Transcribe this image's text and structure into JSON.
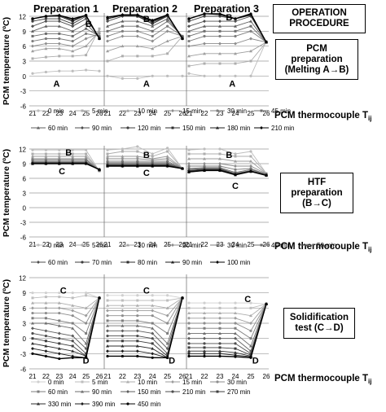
{
  "column_titles": [
    "Preparation 1",
    "Preparation 2",
    "Preparation 3"
  ],
  "right_boxes": {
    "operation": [
      "OPERATION",
      "PROCEDURE"
    ],
    "pcm_prep": [
      "PCM",
      "preparation",
      "(Melting A→B)"
    ],
    "htf_prep": [
      "HTF",
      "preparation",
      "(B→C)"
    ],
    "solid": [
      "Solidification",
      "test (C→D)"
    ]
  },
  "y_axis_label": "PCM temperature (ºC)",
  "x_axis_label": "PCM thermocouple T",
  "x_axis_subscript": "ij",
  "chart_data": [
    {
      "type": "line",
      "title": "",
      "x": [
        21,
        22,
        23,
        24,
        25,
        26
      ],
      "ylim": [
        -6,
        12
      ],
      "yticks": [
        -6,
        -3,
        0,
        3,
        6,
        9,
        12
      ],
      "annotations": [
        {
          "text": "A",
          "panel": 1,
          "x": 22.8,
          "y": -1.5
        },
        {
          "text": "B",
          "panel": 1,
          "x": 25.2,
          "y": 10.5
        },
        {
          "text": "A",
          "panel": 2,
          "x": 23.6,
          "y": -1.5
        },
        {
          "text": "B",
          "panel": 2,
          "x": 23.6,
          "y": 11.5
        },
        {
          "text": "A",
          "panel": 3,
          "x": 23.8,
          "y": -1.5
        },
        {
          "text": "B",
          "panel": 3,
          "x": 23.6,
          "y": 11.8
        }
      ],
      "legend": [
        [
          "0 min",
          "5 min",
          "10 min",
          "15 min",
          "30 min",
          "45 min"
        ],
        [
          "60 min",
          "90 min",
          "120 min",
          "150 min",
          "180 min",
          "210 min"
        ]
      ],
      "series_panel1": [
        [
          0.5,
          0.8,
          1,
          1,
          1.2,
          1
        ],
        [
          3.5,
          3.8,
          4,
          4,
          4.2,
          9.5
        ],
        [
          5,
          5.5,
          5.5,
          5,
          6,
          9
        ],
        [
          6,
          6.5,
          6.5,
          6,
          7.5,
          8.5
        ],
        [
          7,
          7.5,
          7.5,
          7,
          8.5,
          8
        ],
        [
          8,
          8.5,
          8.5,
          8,
          9.5,
          8
        ],
        [
          9,
          10,
          10,
          9,
          10.5,
          7.8
        ],
        [
          10,
          11,
          11,
          10,
          11.5,
          7.8
        ],
        [
          11,
          11.5,
          11.5,
          10.5,
          12,
          7.5
        ],
        [
          11.5,
          12,
          12,
          11,
          12.2,
          7.5
        ],
        [
          11.5,
          12,
          12.2,
          11.2,
          12.2,
          7.5
        ],
        [
          11.5,
          12,
          12.2,
          11.5,
          12.2,
          7.5
        ]
      ],
      "series_panel2": [
        [
          0,
          -0.5,
          -0.5,
          0,
          0,
          0
        ],
        [
          3,
          4,
          4,
          4,
          4.5,
          8
        ],
        [
          5,
          6,
          6,
          5.5,
          7,
          8
        ],
        [
          7,
          8,
          8,
          7,
          9,
          8
        ],
        [
          8,
          9,
          9,
          8,
          10,
          8
        ],
        [
          9,
          10,
          10,
          9,
          11,
          8
        ],
        [
          10,
          11,
          11,
          10,
          11.5,
          7.8
        ],
        [
          11,
          12,
          12,
          10.5,
          12,
          7.8
        ],
        [
          11.5,
          12.2,
          12,
          10.5,
          12.2,
          7.5
        ],
        [
          11.5,
          12.2,
          12,
          10.8,
          12.2,
          7.5
        ],
        [
          11.5,
          12.3,
          12.2,
          11,
          12.3,
          7.5
        ],
        [
          11.8,
          12.3,
          12.3,
          11.2,
          12.3,
          7.5
        ]
      ],
      "series_panel3": [
        [
          0.5,
          0,
          0,
          0,
          0,
          7
        ],
        [
          2,
          2.5,
          2.5,
          2.5,
          3,
          6.8
        ],
        [
          4,
          4.5,
          4.5,
          4.5,
          5,
          6.8
        ],
        [
          6,
          6.5,
          6.5,
          6.5,
          7.5,
          6.8
        ],
        [
          7,
          8,
          8,
          8,
          9,
          6.8
        ],
        [
          8,
          9,
          9,
          9,
          10,
          6.8
        ],
        [
          9,
          10,
          10,
          10,
          11,
          6.8
        ],
        [
          10,
          11,
          11,
          11,
          12,
          6.8
        ],
        [
          11,
          12,
          12,
          11.5,
          12.2,
          6.8
        ],
        [
          11.5,
          12.5,
          12.3,
          11.5,
          12.3,
          6.8
        ],
        [
          11.5,
          12.5,
          12.5,
          11.5,
          12.5,
          6.8
        ],
        [
          11.5,
          12.5,
          12.5,
          11.5,
          12.5,
          6.8
        ]
      ]
    },
    {
      "type": "line",
      "title": "",
      "x": [
        21,
        22,
        23,
        24,
        25,
        26
      ],
      "ylim": [
        -6,
        12
      ],
      "yticks": [
        -6,
        -3,
        0,
        3,
        6,
        9,
        12
      ],
      "annotations": [
        {
          "text": "B",
          "panel": 1,
          "x": 23.7,
          "y": 11.3
        },
        {
          "text": "C",
          "panel": 1,
          "x": 23.2,
          "y": 7.5
        },
        {
          "text": "B",
          "panel": 2,
          "x": 23.6,
          "y": 10.8
        },
        {
          "text": "C",
          "panel": 2,
          "x": 23.6,
          "y": 7.2
        },
        {
          "text": "B",
          "panel": 3,
          "x": 23.6,
          "y": 10.8
        },
        {
          "text": "C",
          "panel": 3,
          "x": 24,
          "y": 4.5
        }
      ],
      "legend": [
        [
          "0 min",
          "5 min",
          "10 min",
          "20 min",
          "30 min",
          "40 min",
          "50 min"
        ],
        [
          "60 min",
          "70 min",
          "80 min",
          "90 min",
          "100 min"
        ]
      ],
      "series_panel1": [
        [
          11.8,
          11.8,
          11.8,
          11.8,
          11.8,
          7.5
        ],
        [
          11,
          11,
          11,
          11,
          11,
          7.5
        ],
        [
          10.5,
          10.5,
          10.5,
          10.5,
          10.5,
          7.6
        ],
        [
          10,
          10,
          10,
          10,
          10,
          7.6
        ],
        [
          9.8,
          9.8,
          9.8,
          9.8,
          9.8,
          7.6
        ],
        [
          9.5,
          9.5,
          9.5,
          9.5,
          9.5,
          7.7
        ],
        [
          9.3,
          9.3,
          9.3,
          9.3,
          9.3,
          7.7
        ],
        [
          9.2,
          9.2,
          9.2,
          9.2,
          9.2,
          7.7
        ],
        [
          9.1,
          9.1,
          9.1,
          9.1,
          9.1,
          7.8
        ],
        [
          9,
          9,
          9,
          9,
          9,
          7.8
        ],
        [
          9,
          9,
          9,
          9,
          9,
          7.8
        ],
        [
          9,
          9,
          9,
          9,
          9,
          7.8
        ]
      ],
      "series_panel2": [
        [
          11.8,
          12,
          12.5,
          11,
          12.2,
          8
        ],
        [
          11,
          11.5,
          11.5,
          10.5,
          11.5,
          8
        ],
        [
          10.5,
          10.5,
          10.5,
          10,
          10.5,
          8
        ],
        [
          10,
          10,
          10,
          9.8,
          10,
          8
        ],
        [
          9.5,
          9.5,
          9.5,
          9.5,
          9.5,
          8
        ],
        [
          9.2,
          9.2,
          9.2,
          9.2,
          9.2,
          8
        ],
        [
          9,
          9,
          9,
          9,
          9,
          8
        ],
        [
          8.8,
          8.8,
          8.8,
          8.8,
          8.8,
          8
        ],
        [
          8.7,
          8.7,
          8.7,
          8.7,
          8.7,
          8
        ],
        [
          8.6,
          8.6,
          8.6,
          8.6,
          8.6,
          8
        ],
        [
          8.5,
          8.5,
          8.5,
          8.5,
          8.5,
          8
        ],
        [
          8.5,
          8.5,
          8.5,
          8.5,
          8.5,
          8
        ]
      ],
      "series_panel3": [
        [
          11.8,
          12,
          12,
          11,
          11.5,
          7
        ],
        [
          11,
          11,
          11,
          10.5,
          10.5,
          7
        ],
        [
          10,
          10,
          10,
          9.5,
          9.5,
          6.9
        ],
        [
          9,
          9,
          9,
          8.5,
          8.5,
          6.9
        ],
        [
          8.5,
          8.5,
          8.5,
          7.8,
          8,
          6.8
        ],
        [
          8,
          8.2,
          8.2,
          7.2,
          7.8,
          6.8
        ],
        [
          7.8,
          8,
          8,
          7,
          7.6,
          6.7
        ],
        [
          7.6,
          7.9,
          7.9,
          6.9,
          7.5,
          6.7
        ],
        [
          7.5,
          7.8,
          7.8,
          6.8,
          7.5,
          6.7
        ],
        [
          7.4,
          7.7,
          7.7,
          6.8,
          7.4,
          6.6
        ],
        [
          7.3,
          7.6,
          7.6,
          6.7,
          7.4,
          6.6
        ],
        [
          7.3,
          7.6,
          7.6,
          6.7,
          7.4,
          6.6
        ]
      ]
    },
    {
      "type": "line",
      "title": "",
      "x": [
        21,
        22,
        23,
        24,
        25,
        26
      ],
      "ylim": [
        -6,
        12
      ],
      "yticks": [
        -6,
        -3,
        0,
        3,
        6,
        9,
        12
      ],
      "annotations": [
        {
          "text": "C",
          "panel": 1,
          "x": 23.3,
          "y": 9.5
        },
        {
          "text": "D",
          "panel": 1,
          "x": 25,
          "y": -4.3
        },
        {
          "text": "C",
          "panel": 2,
          "x": 23.6,
          "y": 9.5
        },
        {
          "text": "D",
          "panel": 2,
          "x": 25.3,
          "y": -4.3
        },
        {
          "text": "C",
          "panel": 3,
          "x": 24.8,
          "y": 7.8
        },
        {
          "text": "D",
          "panel": 3,
          "x": 25.3,
          "y": -4.3
        }
      ],
      "legend": [
        [
          "0 min",
          "5 min",
          "10 min",
          "15 min",
          "30 min"
        ],
        [
          "60 min",
          "90 min",
          "150 min",
          "210 min",
          "270 min"
        ],
        [
          "330 min",
          "390 min",
          "450 min"
        ]
      ],
      "series_panel1": [
        [
          9,
          9,
          9,
          9,
          9,
          8
        ],
        [
          8,
          8.2,
          8.2,
          8,
          8.5,
          8
        ],
        [
          7,
          7,
          7,
          6.5,
          6,
          8
        ],
        [
          6,
          6,
          6,
          5.5,
          4.5,
          8
        ],
        [
          5,
          5,
          5,
          4.5,
          3,
          8
        ],
        [
          4,
          4,
          3.5,
          3,
          1,
          8
        ],
        [
          3,
          3,
          2.5,
          2,
          -1,
          8
        ],
        [
          2,
          1.5,
          1,
          0.5,
          -2,
          8
        ],
        [
          1,
          0.5,
          0,
          -0.5,
          -3,
          8
        ],
        [
          0,
          -0.5,
          -1,
          -1.5,
          -3.5,
          8
        ],
        [
          -1,
          -1.5,
          -2,
          -2.5,
          -3.5,
          8
        ],
        [
          -2,
          -2.5,
          -3,
          -3.5,
          -3.8,
          8
        ],
        [
          -3,
          -3.5,
          -4,
          -3.8,
          -3.8,
          8
        ]
      ],
      "series_panel2": [
        [
          8.5,
          8.5,
          8.5,
          8.5,
          8.5,
          8
        ],
        [
          7.5,
          7.5,
          7.5,
          7.5,
          7.5,
          8
        ],
        [
          6.5,
          6.5,
          6.5,
          6.5,
          6,
          8
        ],
        [
          5.5,
          5.5,
          5.5,
          5.5,
          4.5,
          8
        ],
        [
          4.5,
          4.5,
          4.5,
          4.5,
          3,
          8
        ],
        [
          3.5,
          3.5,
          3.5,
          3,
          1,
          8
        ],
        [
          2.5,
          2.5,
          2.5,
          2,
          -1,
          8
        ],
        [
          1.5,
          1.5,
          1.5,
          1,
          -2,
          8
        ],
        [
          0.5,
          0.5,
          0.5,
          0,
          -3,
          8
        ],
        [
          -0.5,
          -0.5,
          -0.5,
          -1,
          -3.5,
          8
        ],
        [
          -1.5,
          -1.5,
          -1.5,
          -2,
          -3.8,
          8
        ],
        [
          -2.5,
          -2.5,
          -2.5,
          -3,
          -3.8,
          8
        ],
        [
          -3.5,
          -3.5,
          -3.5,
          -3.8,
          -3.8,
          8
        ]
      ],
      "series_panel3": [
        [
          7,
          7,
          7,
          7,
          7,
          6.8
        ],
        [
          6,
          6,
          6,
          6,
          6,
          6.8
        ],
        [
          5,
          5,
          5,
          5,
          4.5,
          6.8
        ],
        [
          4,
          4,
          4,
          4,
          3,
          6.8
        ],
        [
          3,
          3,
          3,
          3,
          1.5,
          6.8
        ],
        [
          2,
          2,
          2,
          2,
          0,
          6.8
        ],
        [
          1,
          1,
          1,
          1,
          -1.5,
          6.8
        ],
        [
          0,
          0,
          0,
          0,
          -2.5,
          6.8
        ],
        [
          -1,
          -1,
          -1,
          -1,
          -3,
          6.8
        ],
        [
          -1.8,
          -1.8,
          -1.8,
          -2,
          -3.3,
          6.8
        ],
        [
          -2.5,
          -2.5,
          -2.5,
          -2.8,
          -3.5,
          6.8
        ],
        [
          -3,
          -3,
          -3,
          -3.3,
          -3.6,
          6.8
        ],
        [
          -3.5,
          -3.5,
          -3.5,
          -3.6,
          -3.8,
          6.8
        ]
      ]
    }
  ]
}
